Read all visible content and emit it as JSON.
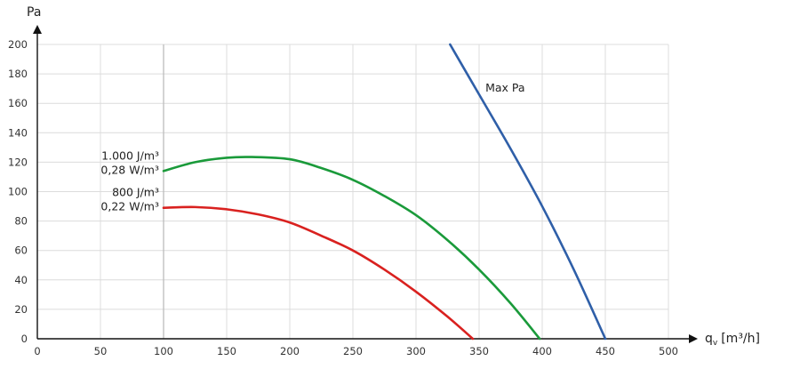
{
  "chart_data": {
    "type": "line",
    "xlabel": "q",
    "xlabel_sub": "v",
    "xlabel_unit": "[m³/h]",
    "ylabel": "Pa",
    "xlim": [
      0,
      500
    ],
    "ylim": [
      0,
      200
    ],
    "x_ticks": [
      0,
      50,
      100,
      150,
      200,
      250,
      300,
      350,
      400,
      450,
      500
    ],
    "y_ticks": [
      0,
      20,
      40,
      60,
      80,
      100,
      120,
      140,
      160,
      180,
      200
    ],
    "grid": true,
    "series": [
      {
        "name": "Max Pa",
        "color": "#2f5fa8",
        "x": [
          327,
          350,
          375,
          400,
          425,
          450
        ],
        "y": [
          200,
          166,
          129,
          90,
          47,
          0
        ]
      },
      {
        "label_lines": [
          "1.000 J/m³",
          "0,28 W/m³"
        ],
        "color": "#1a9a3a",
        "x": [
          100,
          125,
          150,
          170,
          200,
          225,
          250,
          275,
          300,
          325,
          350,
          375,
          398
        ],
        "y": [
          114,
          120,
          123,
          123.5,
          122,
          116,
          108,
          97,
          84,
          67,
          47,
          24,
          0
        ]
      },
      {
        "label_lines": [
          "800 J/m³",
          "0,22 W/m³"
        ],
        "color": "#d9211f",
        "x": [
          100,
          125,
          150,
          175,
          200,
          225,
          250,
          275,
          300,
          325,
          345
        ],
        "y": [
          89,
          89.5,
          88,
          84.5,
          79,
          70,
          60,
          47,
          32,
          15,
          0
        ]
      }
    ]
  }
}
